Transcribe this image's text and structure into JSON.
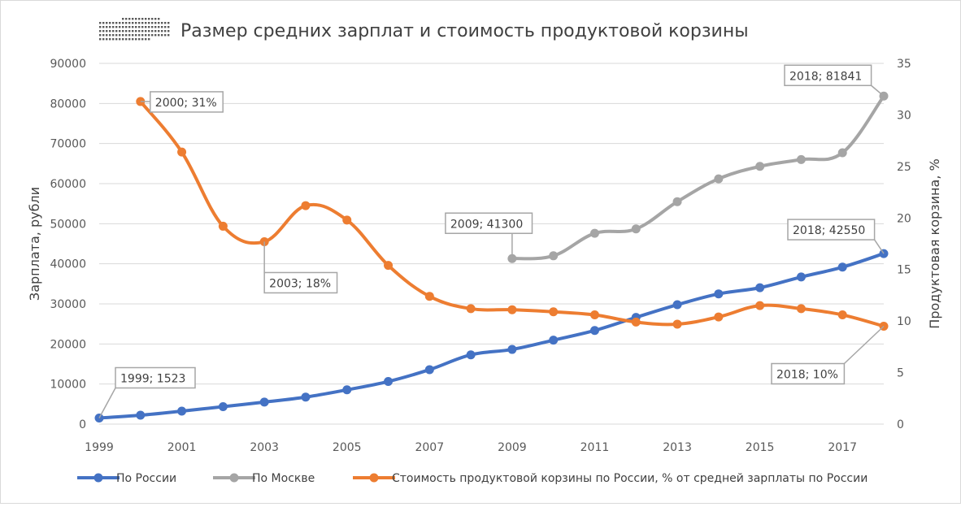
{
  "chart_data": {
    "type": "line",
    "title": "Размер средних зарплат и стоимость продуктовой корзины",
    "ylabel_left": "Зарплата, рубли",
    "ylabel_right": "Продуктовая корзина, %",
    "y_left_range": [
      0,
      90000
    ],
    "y_left_ticks": [
      "0",
      "10000",
      "20000",
      "30000",
      "40000",
      "50000",
      "60000",
      "70000",
      "80000",
      "90000"
    ],
    "y_right_range": [
      0,
      35
    ],
    "y_right_ticks": [
      "0",
      "5",
      "10",
      "15",
      "20",
      "25",
      "30",
      "35"
    ],
    "x_range": [
      1999,
      2018
    ],
    "x_ticks": [
      "1999",
      "2001",
      "2003",
      "2005",
      "2007",
      "2009",
      "2011",
      "2013",
      "2015",
      "2017"
    ],
    "grid": "horizontal",
    "legend_position": "bottom",
    "series": [
      {
        "name": "По России",
        "axis": "left",
        "color": "#4472c4",
        "x": [
          1999,
          2000,
          2001,
          2002,
          2003,
          2004,
          2005,
          2006,
          2007,
          2008,
          2009,
          2010,
          2011,
          2012,
          2013,
          2014,
          2015,
          2016,
          2017,
          2018
        ],
        "values": [
          1523,
          2223,
          3240,
          4360,
          5499,
          6740,
          8555,
          10634,
          13593,
          17290,
          18638,
          20952,
          23369,
          26629,
          29792,
          32495,
          34030,
          36709,
          39167,
          42550
        ]
      },
      {
        "name": "По Москве",
        "axis": "left",
        "color": "#a5a5a5",
        "x": [
          2009,
          2010,
          2011,
          2012,
          2013,
          2014,
          2015,
          2016,
          2017,
          2018
        ],
        "values": [
          41300,
          42000,
          47600,
          48700,
          55500,
          61200,
          64300,
          66000,
          67700,
          81841
        ]
      },
      {
        "name": "Стоимость продуктовой корзины по России, % от средней зарплаты по России",
        "axis": "right",
        "color": "#ed7d31",
        "x": [
          2000,
          2001,
          2002,
          2003,
          2004,
          2005,
          2006,
          2007,
          2008,
          2009,
          2010,
          2011,
          2012,
          2013,
          2014,
          2015,
          2016,
          2017,
          2018
        ],
        "values": [
          31.3,
          26.4,
          19.2,
          17.7,
          21.2,
          19.8,
          15.4,
          12.4,
          11.2,
          11.1,
          10.9,
          10.6,
          9.9,
          9.7,
          10.4,
          11.5,
          11.2,
          10.6,
          9.5
        ]
      }
    ],
    "annotations": [
      {
        "text": "1999; 1523",
        "series": 0,
        "index": 0
      },
      {
        "text": "2000; 31%",
        "series": 2,
        "index": 0
      },
      {
        "text": "2003; 18%",
        "series": 2,
        "index": 3
      },
      {
        "text": "2009; 41300",
        "series": 1,
        "index": 0
      },
      {
        "text": "2018; 81841",
        "series": 1,
        "index": 9
      },
      {
        "text": "2018; 42550",
        "series": 0,
        "index": 19
      },
      {
        "text": "2018; 10%",
        "series": 2,
        "index": 18
      }
    ]
  }
}
